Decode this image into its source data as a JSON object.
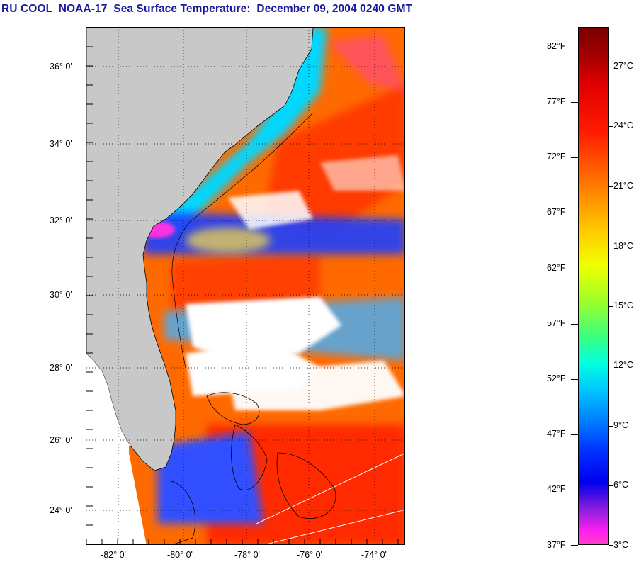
{
  "title": "RU COOL  NOAA-17  Sea Surface Temperature:  December 09, 2004 0240 GMT",
  "colors": {
    "title": "#1a1a9c",
    "land": "#c8c8c8",
    "cloud": "#ffffff",
    "warm": "#ff4000",
    "cool": "#1040ff"
  },
  "map": {
    "lat_labels": [
      "36° 0'",
      "34° 0'",
      "32° 0'",
      "30° 0'",
      "28° 0'",
      "26° 0'",
      "24° 0'"
    ],
    "lon_labels": [
      "-82° 0'",
      "-80° 0'",
      "-78° 0'",
      "-76° 0'",
      "-74° 0'"
    ]
  },
  "colorbar": {
    "fahrenheit": [
      "82°F",
      "77°F",
      "72°F",
      "67°F",
      "62°F",
      "57°F",
      "52°F",
      "47°F",
      "42°F",
      "37°F"
    ],
    "celsius": [
      "27°C",
      "24°C",
      "21°C",
      "18°C",
      "15°C",
      "12°C",
      "9°C",
      "6°C",
      "3°C"
    ]
  }
}
